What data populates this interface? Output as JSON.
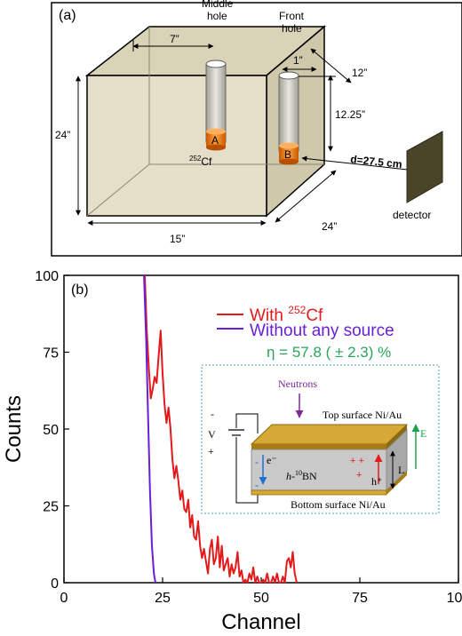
{
  "panel_a": {
    "label": "(a)",
    "middle_hole_label_1": "Middle",
    "middle_hole_label_2": "hole",
    "front_hole_label_1": "Front",
    "front_hole_label_2": "hole",
    "dim_7": "7”",
    "dim_1": "1”",
    "dim_12": "12”",
    "dim_1225": "12.25”",
    "dim_24_left": "24”",
    "dim_15": "15”",
    "dim_24_bottom": "24”",
    "distance": "d=27.5 cm",
    "source_a": "A",
    "source_b": "B",
    "cf_mass": "252",
    "cf_symbol": "Cf",
    "detector": "detector"
  },
  "chart_data": {
    "type": "line",
    "panel_label": "(b)",
    "xlabel": "Channel",
    "ylabel": "Counts",
    "xlim": [
      0,
      100
    ],
    "ylim": [
      0,
      100
    ],
    "xticks": [
      "0",
      "25",
      "50",
      "75",
      "100"
    ],
    "yticks": [
      "0",
      "25",
      "50",
      "75",
      "100"
    ],
    "legend_placement": "top-right",
    "series": [
      {
        "name": "With 252Cf",
        "legend_prefix": "With ",
        "legend_sup": "252",
        "legend_suffix": "Cf",
        "color": "#e31a1c",
        "x": [
          20.5,
          21,
          21.5,
          22,
          22.5,
          23,
          23.5,
          24,
          24.5,
          25,
          25.5,
          26,
          26.5,
          27,
          27.5,
          28,
          28.5,
          29,
          29.5,
          30,
          30.5,
          31,
          31.5,
          32,
          32.5,
          33,
          33.5,
          34,
          34.5,
          35,
          35.5,
          36,
          36.5,
          37,
          37.5,
          38,
          38.5,
          39,
          39.5,
          40,
          40.5,
          41,
          41.5,
          42,
          42.5,
          43,
          43.5,
          44,
          44.5,
          45,
          45.5,
          46,
          46.5,
          47,
          47.5,
          48,
          48.5,
          49,
          49.5,
          50,
          50.5,
          51,
          51.5,
          52,
          52.5,
          53,
          53.5,
          54,
          54.5,
          55,
          55.5,
          56,
          56.5,
          57,
          57.5,
          58,
          58.5,
          59
        ],
        "y": [
          100,
          82,
          70,
          60,
          63,
          67,
          65,
          74,
          82,
          68,
          58,
          52,
          57,
          50,
          40,
          34,
          38,
          33,
          27,
          30,
          24,
          23,
          27,
          18,
          22,
          15,
          14,
          20,
          12,
          8,
          11,
          7,
          3,
          11,
          14,
          6,
          8,
          15,
          5,
          12,
          4,
          6,
          8,
          2,
          6,
          3,
          5,
          10,
          2,
          4,
          0,
          1,
          0,
          3,
          1,
          5,
          0,
          2,
          0,
          0,
          1,
          0,
          3,
          0,
          0,
          2,
          0,
          3,
          0,
          0,
          2,
          0,
          7,
          8,
          5,
          10,
          3,
          0
        ]
      },
      {
        "name": "Without any source",
        "legend_text": "Without any source",
        "color": "#6a1fd6",
        "x": [
          20.3,
          20.8,
          21.3,
          21.8,
          22.3,
          22.8,
          23.2
        ],
        "y": [
          100,
          80,
          55,
          30,
          12,
          3,
          0
        ]
      }
    ],
    "efficiency": "η  = 57.8 ( ± 2.3) %",
    "efficiency_color": "#2aa55a",
    "inset": {
      "neutrons": "Neutrons",
      "top_surface": "Top surface Ni/Au",
      "bottom_surface": "Bottom surface Ni/Au",
      "material_prefix": "h-",
      "material_sup": "10",
      "material_suffix": "BN",
      "voltage": "V",
      "minus": "-",
      "plus": "+",
      "electron": "e⁻",
      "hole": "h⁺",
      "length": "L",
      "field": "E",
      "charge_pos": "+ +",
      "charge_pos_single": "+",
      "charge_neg": "-"
    }
  }
}
